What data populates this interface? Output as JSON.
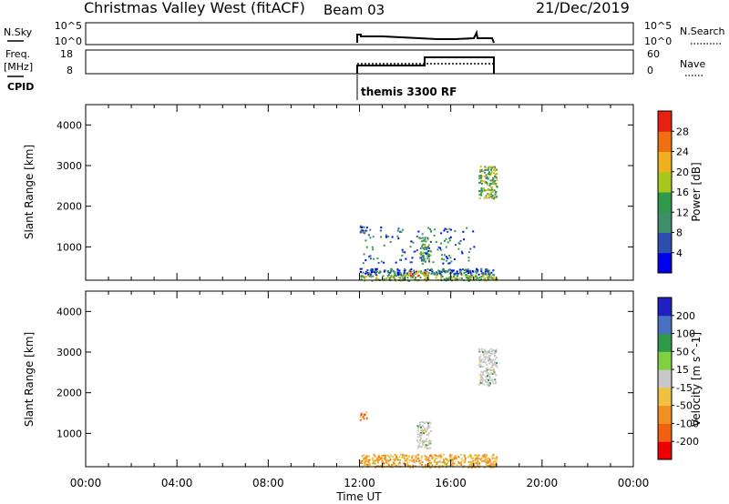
{
  "header": {
    "title": "Christmas Valley West (fitACF)",
    "beam": "Beam 03",
    "date": "21/Dec/2019"
  },
  "nsky_panel": {
    "left_label": "N.Sky",
    "right_label": "N.Search",
    "left_ticks": [
      "10^5",
      "10^0"
    ],
    "right_ticks": [
      "10^5",
      "10^0"
    ]
  },
  "freq_panel": {
    "left_label_1": "Freq.",
    "left_label_2": "[MHz]",
    "right_label": "Nave",
    "left_ticks": [
      "18",
      "8"
    ],
    "right_ticks": [
      "60",
      "0"
    ],
    "cpid_label": "CPID",
    "cpid_value": "themis 3300 RF"
  },
  "colors": {
    "power": [
      "#0000ee",
      "#2f4fb0",
      "#3e8f6a",
      "#2e9a4a",
      "#a8c820",
      "#f0b020",
      "#f07010",
      "#e82010"
    ],
    "velocity": [
      "#ee0000",
      "#f06010",
      "#f09020",
      "#f0c040",
      "#c8c8c8",
      "#80d040",
      "#2e9a4a",
      "#4a70c0",
      "#2020c0"
    ]
  },
  "chart_data": [
    {
      "type": "heatmap",
      "name": "power",
      "ylabel": "Slant Range [km]",
      "ylim": [
        180,
        4500
      ],
      "xlim": [
        0,
        24
      ],
      "yticks": [
        1000,
        2000,
        3000,
        4000
      ],
      "ytick_labels": [
        "1000",
        "2000",
        "3000",
        "4000"
      ],
      "colorbar_label": "Power [dB]",
      "colorbar_ticks": [
        "28",
        "24",
        "20",
        "16",
        "12",
        "8",
        "4"
      ],
      "colorbar_range": [
        0,
        32
      ],
      "regions": [
        {
          "t0": 12.0,
          "t1": 18.0,
          "r0": 180,
          "r1": 330,
          "v": 18
        },
        {
          "t0": 12.0,
          "t1": 18.0,
          "r0": 330,
          "r1": 480,
          "v": 9
        },
        {
          "t0": 14.0,
          "t1": 15.0,
          "r0": 300,
          "r1": 420,
          "v": 28
        },
        {
          "t0": 14.6,
          "t1": 15.1,
          "r0": 650,
          "r1": 1250,
          "v": 13
        },
        {
          "t0": 17.2,
          "t1": 18.0,
          "r0": 2200,
          "r1": 3000,
          "v": 20
        },
        {
          "t0": 12.0,
          "t1": 12.3,
          "r0": 1350,
          "r1": 1550,
          "v": 8
        },
        {
          "t0": 12.0,
          "t1": 17.0,
          "r0": 600,
          "r1": 1500,
          "v": 8,
          "sparse": true
        }
      ]
    },
    {
      "type": "heatmap",
      "name": "velocity",
      "ylabel": "Slant Range [km]",
      "xlabel": "Time UT",
      "ylim": [
        180,
        4500
      ],
      "xlim": [
        0,
        24
      ],
      "yticks": [
        1000,
        2000,
        3000,
        4000
      ],
      "ytick_labels": [
        "1000",
        "2000",
        "3000",
        "4000"
      ],
      "xtick_labels": [
        "00:00",
        "04:00",
        "08:00",
        "12:00",
        "16:00",
        "20:00",
        "00:00"
      ],
      "colorbar_label": "Velocity [m s^-1]",
      "colorbar_ticks": [
        "200",
        "100",
        "50",
        "15",
        "-15",
        "-50",
        "-100",
        "-200"
      ],
      "regions": [
        {
          "t0": 12.0,
          "t1": 18.0,
          "r0": 180,
          "r1": 500,
          "v": -40
        },
        {
          "t0": 14.5,
          "t1": 15.1,
          "r0": 650,
          "r1": 1300,
          "v": 0
        },
        {
          "t0": 17.2,
          "t1": 18.0,
          "r0": 2200,
          "r1": 3100,
          "v": 0
        },
        {
          "t0": 12.0,
          "t1": 12.3,
          "r0": 1350,
          "r1": 1550,
          "v": -120
        }
      ]
    }
  ]
}
